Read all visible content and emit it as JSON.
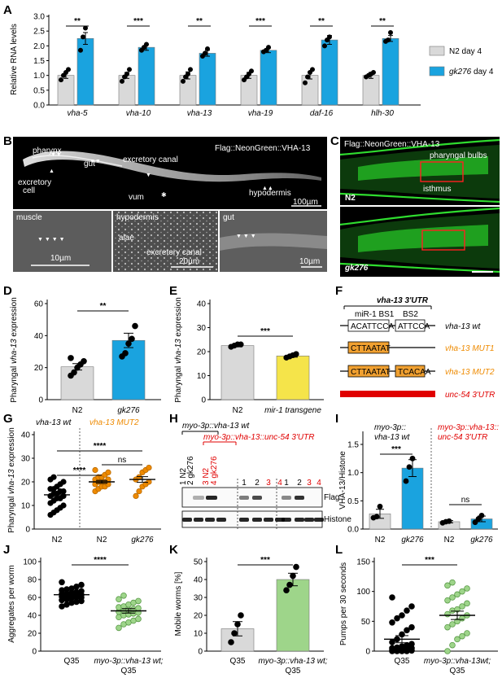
{
  "panels": {
    "A": "A",
    "B": "B",
    "C": "C",
    "D": "D",
    "E": "E",
    "F": "F",
    "G": "G",
    "H": "H",
    "I": "I",
    "J": "J",
    "K": "K",
    "L": "L"
  },
  "colors": {
    "n2": "#d9d9d9",
    "gk276": "#1aa3df",
    "orange": "#ee8a00",
    "red": "#e00000",
    "yellow": "#f5e44a",
    "green": "#9ed58a"
  },
  "panel_a": {
    "ylabel": "Relative RNA levels",
    "legend": [
      "N2 day 4"
    ],
    "legend_gk": [
      "gk276",
      " day 4"
    ]
  },
  "panel_b": {
    "title": "Flag::NeonGreen::VHA-13",
    "labels": [
      "pharynx",
      "gut",
      "excretory canal",
      "excretory",
      "cell",
      "vum",
      "hypodermis",
      "alae",
      "excretory canal"
    ],
    "sub": [
      "muscle",
      "hypodermis",
      "gut"
    ],
    "scales": [
      "100µm",
      "10µm",
      "20µm",
      "10µm"
    ]
  },
  "panel_c": {
    "title": "Flag::NeonGreen::VHA-13",
    "labels": [
      "pharyngal bulbs",
      "isthmus"
    ],
    "strains": [
      "N2",
      "gk276"
    ]
  },
  "panel_d": {
    "ylabel": [
      "Pharyngal ",
      "vha-13",
      " expression"
    ]
  },
  "panel_e": {
    "ylabel": [
      "Pharyngal ",
      "vha-13",
      " expression"
    ]
  },
  "panel_f": {
    "title": "vha-13 3'UTR",
    "site_labels": [
      "miR-1 BS1",
      "BS2"
    ],
    "seqs": [
      "ACATTCCA",
      "ATTCCA",
      "CTTAATAT",
      "TCACAA"
    ],
    "constructs": [
      "vha-13 wt",
      "vha-13 MUT1",
      "vha-13 MUT2",
      "unc-54 3'UTR"
    ]
  },
  "panel_g": {
    "ylabel": [
      "Pharyngal ",
      "vha-13",
      " expression"
    ],
    "groups": [
      "vha-13 wt",
      "vha-13 MUT2"
    ]
  },
  "panel_h": {
    "titles": [
      "myo-3p::vha-13 wt",
      "myo-3p::vha-13::unc-54 3'UTR"
    ],
    "lanes": [
      {
        "label": "1 N2",
        "color": "#000"
      },
      {
        "label": "2 gk276",
        "color": "#000"
      },
      {
        "label": "3 N2",
        "color": "#e00000"
      },
      {
        "label": "4 gk276",
        "color": "#e00000"
      }
    ],
    "lane_numbers": [
      "1",
      "2",
      "3",
      "4"
    ],
    "rows": [
      "Flag",
      "Histone"
    ]
  },
  "panel_i": {
    "ylabel": "VHA-13/Histone",
    "groups": [
      "myo-3p::",
      "vha-13 wt",
      "myo-3p::vha-13::",
      "unc-54 3'UTR"
    ]
  },
  "panel_j": {
    "ylabel": "Aggregates per worm"
  },
  "panel_k": {
    "ylabel": "Mobile worms [%]"
  },
  "panel_l": {
    "ylabel": "Pumps per 30 seconds"
  },
  "chart_data": [
    {
      "panel": "A",
      "type": "bar",
      "categories": [
        "vha-5",
        "vha-10",
        "vha-13",
        "vha-19",
        "daf-16",
        "hlh-30"
      ],
      "series": [
        {
          "name": "N2 day 4",
          "values": [
            1.0,
            1.0,
            1.0,
            1.0,
            1.0,
            1.0
          ],
          "errors": [
            0.1,
            0.1,
            0.12,
            0.1,
            0.12,
            0.1
          ],
          "points": [
            [
              0.85,
              1.0,
              1.1,
              1.2
            ],
            [
              0.8,
              0.95,
              1.05,
              1.2
            ],
            [
              0.8,
              0.95,
              1.05,
              1.2
            ],
            [
              0.85,
              0.95,
              1.05,
              1.15
            ],
            [
              0.75,
              0.95,
              1.1,
              1.2
            ],
            [
              0.95,
              1.0,
              1.05,
              1.1
            ]
          ]
        },
        {
          "name": "gk276 day 4",
          "values": [
            2.25,
            1.95,
            1.75,
            1.85,
            2.2,
            2.25
          ],
          "errors": [
            0.2,
            0.1,
            0.1,
            0.08,
            0.15,
            0.1
          ],
          "points": [
            [
              1.85,
              2.3,
              2.6
            ],
            [
              1.85,
              1.95,
              2.05
            ],
            [
              1.65,
              1.75,
              1.9
            ],
            [
              1.8,
              1.85,
              1.95
            ],
            [
              2.0,
              2.2,
              2.3
            ],
            [
              2.15,
              2.2,
              2.45
            ]
          ]
        }
      ],
      "significance": [
        "**",
        "***",
        "**",
        "***",
        "**",
        "**"
      ],
      "ylabel": "Relative RNA levels",
      "ylim": [
        0,
        3
      ],
      "yticks": [
        0,
        0.5,
        1.0,
        1.5,
        2.0,
        2.5,
        3.0
      ]
    },
    {
      "panel": "D",
      "type": "bar",
      "categories": [
        "N2",
        "gk276"
      ],
      "values": [
        20.5,
        37.0
      ],
      "errors": [
        2,
        4.5
      ],
      "points": [
        [
          15,
          17,
          20,
          22,
          24,
          26
        ],
        [
          27,
          29,
          35,
          38,
          46
        ]
      ],
      "significance": [
        "**"
      ],
      "ylim": [
        0,
        60
      ],
      "yticks": [
        0,
        20,
        40,
        60
      ]
    },
    {
      "panel": "E",
      "type": "bar",
      "categories": [
        "N2",
        "mir-1 transgene"
      ],
      "values": [
        22.5,
        18.2
      ],
      "errors": [
        0.5,
        0.5
      ],
      "points": [
        [
          22,
          22.5,
          23,
          23
        ],
        [
          17.5,
          18,
          18.5,
          19
        ]
      ],
      "significance": [
        "***"
      ],
      "ylim": [
        0,
        40
      ],
      "yticks": [
        0,
        10,
        20,
        30,
        40
      ]
    },
    {
      "panel": "G",
      "type": "scatter",
      "categories": [
        "N2",
        "N2",
        "gk276"
      ],
      "means": [
        14.5,
        20.0,
        21.0
      ],
      "errors": [
        1.0,
        0.6,
        1.2
      ],
      "points": [
        [
          6,
          7,
          8,
          9,
          10,
          11,
          12,
          13,
          13,
          14,
          14,
          15,
          15,
          16,
          16,
          17,
          17,
          18,
          19,
          20,
          21,
          22
        ],
        [
          16,
          17,
          18,
          18,
          19,
          19,
          20,
          20,
          20,
          21,
          21,
          22,
          22,
          23,
          24,
          25
        ],
        [
          14,
          16,
          18,
          19,
          20,
          21,
          22,
          24,
          25,
          26
        ]
      ],
      "significance": [
        "****",
        "****",
        "ns"
      ],
      "ylim": [
        0,
        40
      ],
      "yticks": [
        0,
        10,
        20,
        30,
        40
      ]
    },
    {
      "panel": "I",
      "type": "bar",
      "categories": [
        "N2",
        "gk276",
        "N2",
        "gk276"
      ],
      "values": [
        0.27,
        1.08,
        0.13,
        0.18
      ],
      "errors": [
        0.08,
        0.15,
        0.02,
        0.05
      ],
      "points": [
        [
          0.2,
          0.22,
          0.4
        ],
        [
          0.85,
          1.1,
          1.25
        ],
        [
          0.11,
          0.13,
          0.14
        ],
        [
          0.12,
          0.18,
          0.24
        ]
      ],
      "significance": [
        "***",
        "ns"
      ],
      "ylim": [
        0,
        1.5
      ],
      "yticks": [
        0,
        0.5,
        1.0,
        1.5
      ]
    },
    {
      "panel": "J",
      "type": "scatter",
      "categories": [
        "Q35",
        "myo-3p::vha-13 wt; Q35"
      ],
      "means": [
        63,
        45
      ],
      "errors": [
        2,
        2.5
      ],
      "points": [
        [
          50,
          52,
          54,
          55,
          56,
          57,
          58,
          59,
          60,
          60,
          61,
          62,
          62,
          63,
          63,
          64,
          64,
          65,
          66,
          67,
          68,
          69,
          70,
          72,
          74,
          77
        ],
        [
          26,
          30,
          32,
          34,
          36,
          38,
          40,
          41,
          42,
          43,
          44,
          45,
          46,
          47,
          48,
          49,
          50,
          52,
          54,
          56,
          58,
          62
        ]
      ],
      "significance": [
        "****"
      ],
      "ylim": [
        0,
        100
      ],
      "yticks": [
        0,
        20,
        40,
        60,
        80,
        100
      ]
    },
    {
      "panel": "K",
      "type": "bar",
      "categories": [
        "Q35",
        "myo-3p::vha-13 wt; Q35"
      ],
      "values": [
        12.5,
        40.0
      ],
      "errors": [
        4,
        3.5
      ],
      "points": [
        [
          5,
          10,
          15,
          20
        ],
        [
          34,
          37,
          42,
          47
        ]
      ],
      "significance": [
        "***"
      ],
      "ylim": [
        0,
        50
      ],
      "yticks": [
        0,
        10,
        20,
        30,
        40,
        50
      ]
    },
    {
      "panel": "L",
      "type": "scatter",
      "categories": [
        "Q35",
        "myo-3p::vha-13wt; Q35"
      ],
      "means": [
        20,
        60
      ],
      "errors": [
        6,
        7
      ],
      "points": [
        [
          0,
          0,
          0,
          0,
          1,
          2,
          2,
          3,
          4,
          5,
          5,
          6,
          8,
          10,
          12,
          15,
          20,
          28,
          35,
          40,
          48,
          55,
          60,
          68,
          75,
          90
        ],
        [
          0,
          10,
          20,
          25,
          30,
          40,
          45,
          50,
          55,
          60,
          62,
          68,
          70,
          75,
          80,
          85,
          90,
          95,
          100,
          105,
          110,
          115
        ]
      ],
      "significance": [
        "***"
      ],
      "ylim": [
        0,
        150
      ],
      "yticks": [
        0,
        50,
        100,
        150
      ]
    }
  ]
}
